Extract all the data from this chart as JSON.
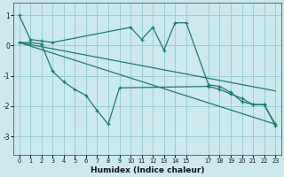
{
  "xlabel": "Humidex (Indice chaleur)",
  "bg_color": "#cce9f0",
  "grid_color": "#99cdd9",
  "line_color": "#1a7a6e",
  "xlim": [
    -0.5,
    23.5
  ],
  "ylim": [
    -3.6,
    1.4
  ],
  "yticks": [
    -3,
    -2,
    -1,
    0,
    1
  ],
  "xticks": [
    0,
    1,
    2,
    3,
    4,
    5,
    6,
    7,
    8,
    9,
    10,
    11,
    12,
    13,
    14,
    15,
    17,
    18,
    19,
    20,
    21,
    22,
    23
  ],
  "series1_x": [
    0,
    1,
    2,
    3,
    10,
    11,
    12,
    13,
    14,
    15,
    17,
    18,
    19,
    20,
    21,
    22,
    23
  ],
  "series1_y": [
    1.0,
    0.2,
    0.15,
    0.1,
    0.6,
    0.2,
    0.6,
    -0.15,
    0.75,
    0.75,
    -1.3,
    -1.35,
    -1.55,
    -1.85,
    -1.95,
    -1.95,
    -2.6
  ],
  "series2_x": [
    0,
    1,
    2,
    3,
    4,
    5,
    6,
    7,
    8,
    9,
    17,
    18,
    19,
    20,
    21,
    22,
    23
  ],
  "series2_y": [
    0.1,
    0.1,
    0.05,
    -0.85,
    -1.2,
    -1.45,
    -1.65,
    -2.15,
    -2.6,
    -1.4,
    -1.35,
    -1.45,
    -1.6,
    -1.75,
    -1.95,
    -1.95,
    -2.65
  ],
  "line1_x": [
    0,
    23
  ],
  "line1_y": [
    0.1,
    -1.5
  ],
  "line2_x": [
    0,
    23
  ],
  "line2_y": [
    0.1,
    -2.6
  ],
  "figsize": [
    3.2,
    2.0
  ],
  "dpi": 100
}
